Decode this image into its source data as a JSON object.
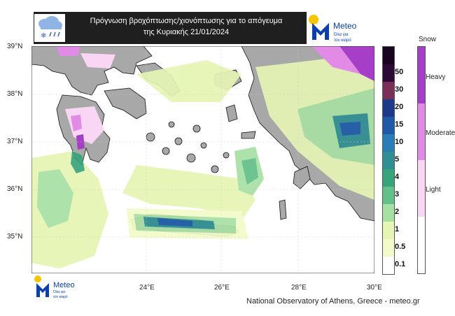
{
  "header": {
    "title_line1": "Πρόγνωση βροχόπτωσης/χιονόπτωσης για το απόγευμα",
    "title_line2": "της Κυριακής 21/01/2024",
    "weather_icon": "rain-snow-cloud-icon"
  },
  "logo": {
    "name": "Meteo",
    "tagline_line1": "Όλα για",
    "tagline_line2": "τον καιρό",
    "accent_blue": "#0a3fae",
    "accent_yellow": "#f6c400"
  },
  "map": {
    "lat_labels": [
      "39°N",
      "38°N",
      "37°N",
      "36°N",
      "35°N"
    ],
    "lon_labels": [
      "24°E",
      "26°E",
      "28°E",
      "30°E"
    ],
    "lat_range": [
      34.3,
      39.0
    ],
    "lon_range": [
      21.0,
      30.0
    ],
    "land_color": "#a8a8a8",
    "sea_color": "#ffffff"
  },
  "precip_legend": {
    "labels": [
      "50",
      "30",
      "20",
      "15",
      "10",
      "5",
      "4",
      "3",
      "2",
      "1",
      "0.5",
      "0.1"
    ],
    "colors": [
      "#2b0a36",
      "#7a2f56",
      "#1d3a8a",
      "#1e5aa8",
      "#2a7db7",
      "#2f8f94",
      "#38a47b",
      "#62c088",
      "#a7e0a3",
      "#e5f5b4",
      "#f3fbc8",
      "#ffffff"
    ]
  },
  "snow_legend": {
    "title": "Snow",
    "labels": [
      "Heavy",
      "Moderate",
      "Light"
    ],
    "colors": [
      "#a63ec8",
      "#e28be6",
      "#f8d6f4",
      "#ffffff"
    ]
  },
  "credit": "National Observatory of Athens, Greece - meteo.gr"
}
